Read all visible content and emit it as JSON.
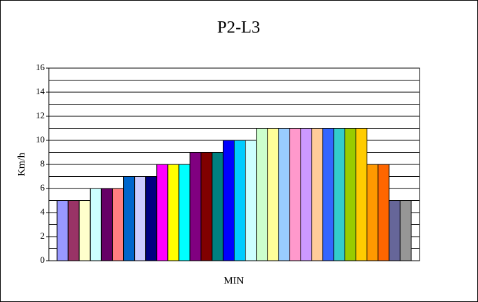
{
  "chart_data": {
    "type": "bar",
    "title": "P2-L3",
    "x_label": "MIN",
    "y_label": "Km/h",
    "categories": [
      null,
      null,
      null,
      null,
      null,
      null,
      null,
      null,
      null,
      null,
      null,
      null,
      null,
      null,
      null,
      null,
      null,
      null,
      null,
      null,
      null,
      null,
      null,
      null,
      null,
      null,
      null,
      null,
      null,
      null,
      null,
      null
    ],
    "values": [
      5,
      5,
      5,
      6,
      6,
      6,
      7,
      7,
      7,
      8,
      8,
      8,
      9,
      9,
      9,
      10,
      10,
      10,
      11,
      11,
      11,
      11,
      11,
      11,
      11,
      11,
      11,
      11,
      8,
      8,
      5,
      5
    ],
    "colors": [
      "#9999ff",
      "#993366",
      "#ffffcc",
      "#ccffff",
      "#660066",
      "#ff8080",
      "#0066cc",
      "#ccccff",
      "#000080",
      "#ff00ff",
      "#ffff00",
      "#00ffff",
      "#800080",
      "#800000",
      "#008080",
      "#0000ff",
      "#00ccff",
      "#ccffff",
      "#ccffcc",
      "#ffff99",
      "#99ccff",
      "#ff99cc",
      "#cc99ff",
      "#ffcc99",
      "#3366ff",
      "#33cccc",
      "#99cc00",
      "#ffcc00",
      "#ff9900",
      "#ff6600",
      "#666699",
      "#969696"
    ],
    "ylim": [
      0,
      16
    ],
    "yticks": [
      0,
      2,
      4,
      6,
      8,
      10,
      12,
      14,
      16
    ],
    "grid": true,
    "minor_grid": true
  }
}
